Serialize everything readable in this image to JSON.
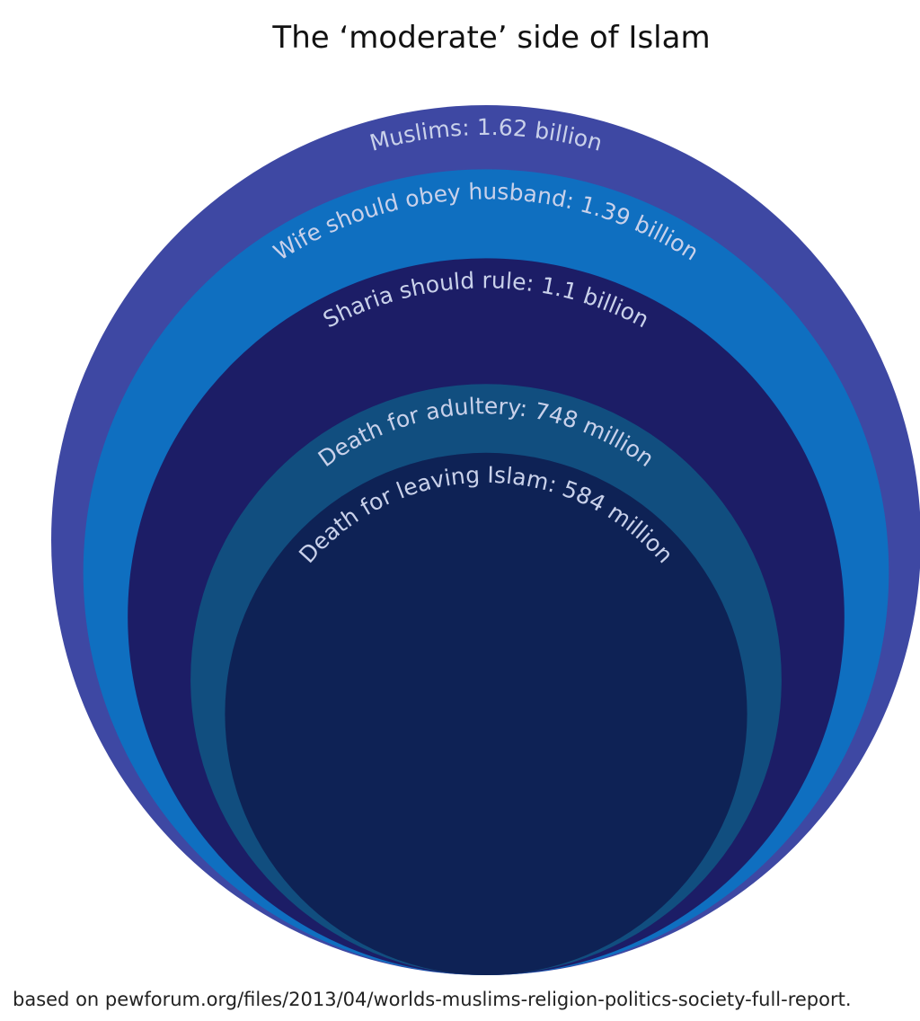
{
  "title": "The ‘moderate’ side of Islam",
  "source": "based on pewforum.org/files/2013/04/worlds-muslims-religion-politics-society-full-report.",
  "chart_data": {
    "type": "nested-circles",
    "title": "The ‘moderate’ side of Islam",
    "unit": "people",
    "series": [
      {
        "label": "Muslims: 1.62 billion",
        "value": 1620000000,
        "color": "#3e48a3"
      },
      {
        "label": "Wife should obey husband: 1.39 billion",
        "value": 1390000000,
        "color": "#0f6fc0"
      },
      {
        "label": "Sharia should rule: 1.1 billion",
        "value": 1100000000,
        "color": "#1c1d66"
      },
      {
        "label": "Death for adultery: 748 million",
        "value": 748000000,
        "color": "#114e7f"
      },
      {
        "label": "Death for leaving Islam: 584 million",
        "value": 584000000,
        "color": "#0e2255"
      }
    ]
  }
}
